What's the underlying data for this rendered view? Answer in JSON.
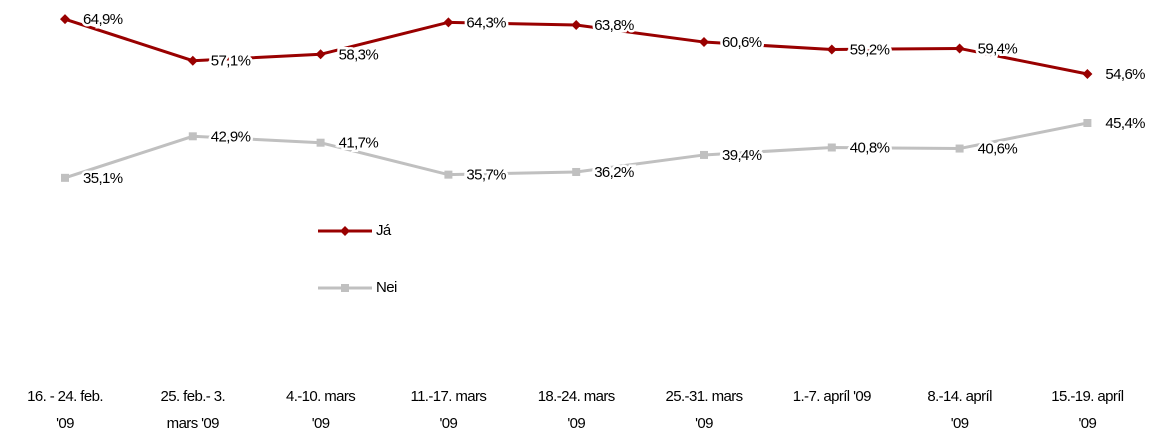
{
  "chart_data": {
    "type": "line",
    "categories": [
      "16. - 24. feb.\n'09",
      "25. feb.- 3.\nmars '09",
      "4.-10. mars\n'09",
      "11.-17. mars\n'09",
      "18.-24. mars\n'09",
      "25.-31. mars\n'09",
      "1.-7. apríl '09",
      "8.-14. apríl\n'09",
      "15.-19. apríl\n'09"
    ],
    "series": [
      {
        "name": "Já",
        "color": "#990000",
        "values": [
          64.9,
          57.1,
          58.3,
          64.3,
          63.8,
          60.6,
          59.2,
          59.4,
          54.6
        ],
        "value_labels": [
          "64,9%",
          "57,1%",
          "58,3%",
          "64,3%",
          "63,8%",
          "60,6%",
          "59,2%",
          "59,4%",
          "54,6%"
        ]
      },
      {
        "name": "Nei",
        "color": "#c0c0c0",
        "values": [
          35.1,
          42.9,
          41.7,
          35.7,
          36.2,
          39.4,
          40.8,
          40.6,
          45.4
        ],
        "value_labels": [
          "35,1%",
          "42,9%",
          "41,7%",
          "35,7%",
          "36,2%",
          "39,4%",
          "40,8%",
          "40,6%",
          "45,4%"
        ]
      }
    ],
    "ylim": [
      30,
      70
    ]
  }
}
